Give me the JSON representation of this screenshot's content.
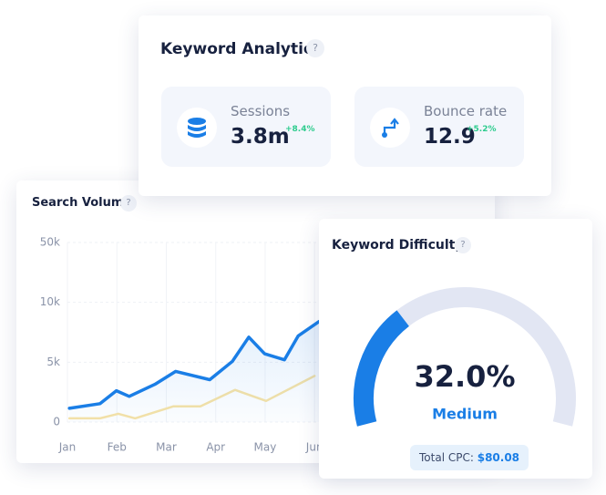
{
  "keyword_analytics": {
    "title": "Keyword Analytics",
    "help": "?",
    "metrics": [
      {
        "label": "Sessions",
        "value": "3.8m",
        "change": "+8.4%"
      },
      {
        "label": "Bounce rate",
        "value": "12.9",
        "change": "+5.2%"
      }
    ]
  },
  "search_volume": {
    "title": "Search Volume",
    "help": "?",
    "chart_data": {
      "type": "line",
      "categories": [
        "Jan",
        "Feb",
        "Mar",
        "Apr",
        "May",
        "Jun"
      ],
      "xlim": [
        0,
        8.5
      ],
      "ylim": [
        0,
        50000
      ],
      "yticks": [
        0,
        {
          "value": 5000,
          "label": "5k"
        },
        {
          "value": 10000,
          "label": "10k"
        },
        {
          "value": 50000,
          "label": "50k"
        }
      ],
      "grid": true,
      "series": [
        {
          "color": "#1a7ee6",
          "x": [
            0.04,
            0.66,
            0.99,
            1.25,
            1.77,
            2.19,
            2.88,
            3.34,
            3.67,
            3.99,
            4.39,
            4.67,
            5.09
          ],
          "values": [
            1150,
            1540,
            2620,
            2150,
            3150,
            4230,
            3540,
            5080,
            7100,
            5700,
            5200,
            7200,
            8400
          ]
        },
        {
          "color": "#f7e3a6",
          "x": [
            0.04,
            0.66,
            1.03,
            1.37,
            2.14,
            2.69,
            3.39,
            4.02,
            5.0
          ],
          "values": [
            310,
            310,
            690,
            310,
            1310,
            1310,
            2690,
            1770,
            3850
          ]
        }
      ]
    }
  },
  "keyword_difficulty": {
    "title": "Keyword Difficulty",
    "help": "?",
    "type": "gauge",
    "value": 32.0,
    "value_label": "32.0%",
    "range": [
      0,
      100
    ],
    "color": "#1a7ee6",
    "level": "Medium",
    "cpc_label": "Total CPC:",
    "cpc_value": "$80.08"
  }
}
